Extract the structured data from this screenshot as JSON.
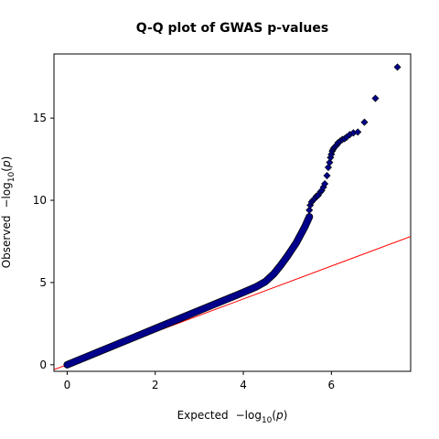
{
  "chart_data": {
    "type": "scatter",
    "title": "Q-Q plot of GWAS p-values",
    "xlabel": {
      "prefix": "Expected",
      "neg": "−log",
      "sub": "10",
      "open": "(",
      "var": "p",
      "close": ")"
    },
    "ylabel": {
      "prefix": "Observed",
      "neg": "−log",
      "sub": "10",
      "open": "(",
      "var": "p",
      "close": ")"
    },
    "xlim": [
      -0.3,
      7.8
    ],
    "ylim": [
      -0.4,
      18.9
    ],
    "xticks": [
      0,
      2,
      4,
      6
    ],
    "yticks": [
      0,
      5,
      10,
      15
    ],
    "grid": false,
    "point_color": "#00008b",
    "line_color": "#ff0000",
    "reference_line": {
      "x": [
        -0.3,
        7.8
      ],
      "y": [
        -0.3,
        7.8
      ]
    },
    "curve": {
      "x": [
        0.0,
        0.5,
        1.0,
        1.5,
        2.0,
        2.5,
        3.0,
        3.5,
        4.0,
        4.3,
        4.5,
        4.7,
        4.85,
        5.0,
        5.1,
        5.2,
        5.3,
        5.4,
        5.45,
        5.5
      ],
      "y": [
        0.0,
        0.55,
        1.1,
        1.65,
        2.2,
        2.75,
        3.3,
        3.85,
        4.4,
        4.75,
        5.05,
        5.55,
        6.05,
        6.6,
        7.0,
        7.4,
        7.9,
        8.4,
        8.7,
        9.0
      ]
    },
    "points": {
      "x": [
        5.5,
        5.52,
        5.55,
        5.58,
        5.62,
        5.66,
        5.7,
        5.75,
        5.78,
        5.82,
        5.85,
        5.9,
        5.93,
        5.96,
        5.98,
        6.0,
        6.02,
        6.04,
        6.06,
        6.08,
        6.12,
        6.15,
        6.2,
        6.25,
        6.3,
        6.35,
        6.42,
        6.5,
        6.6,
        6.75,
        7.0,
        7.5
      ],
      "y": [
        9.4,
        9.7,
        9.9,
        10.0,
        10.1,
        10.25,
        10.3,
        10.5,
        10.6,
        10.8,
        11.0,
        11.5,
        12.0,
        12.3,
        12.6,
        12.8,
        13.0,
        13.1,
        13.2,
        13.25,
        13.35,
        13.5,
        13.6,
        13.7,
        13.75,
        13.85,
        14.0,
        14.1,
        14.15,
        14.75,
        16.2,
        18.1
      ]
    }
  }
}
